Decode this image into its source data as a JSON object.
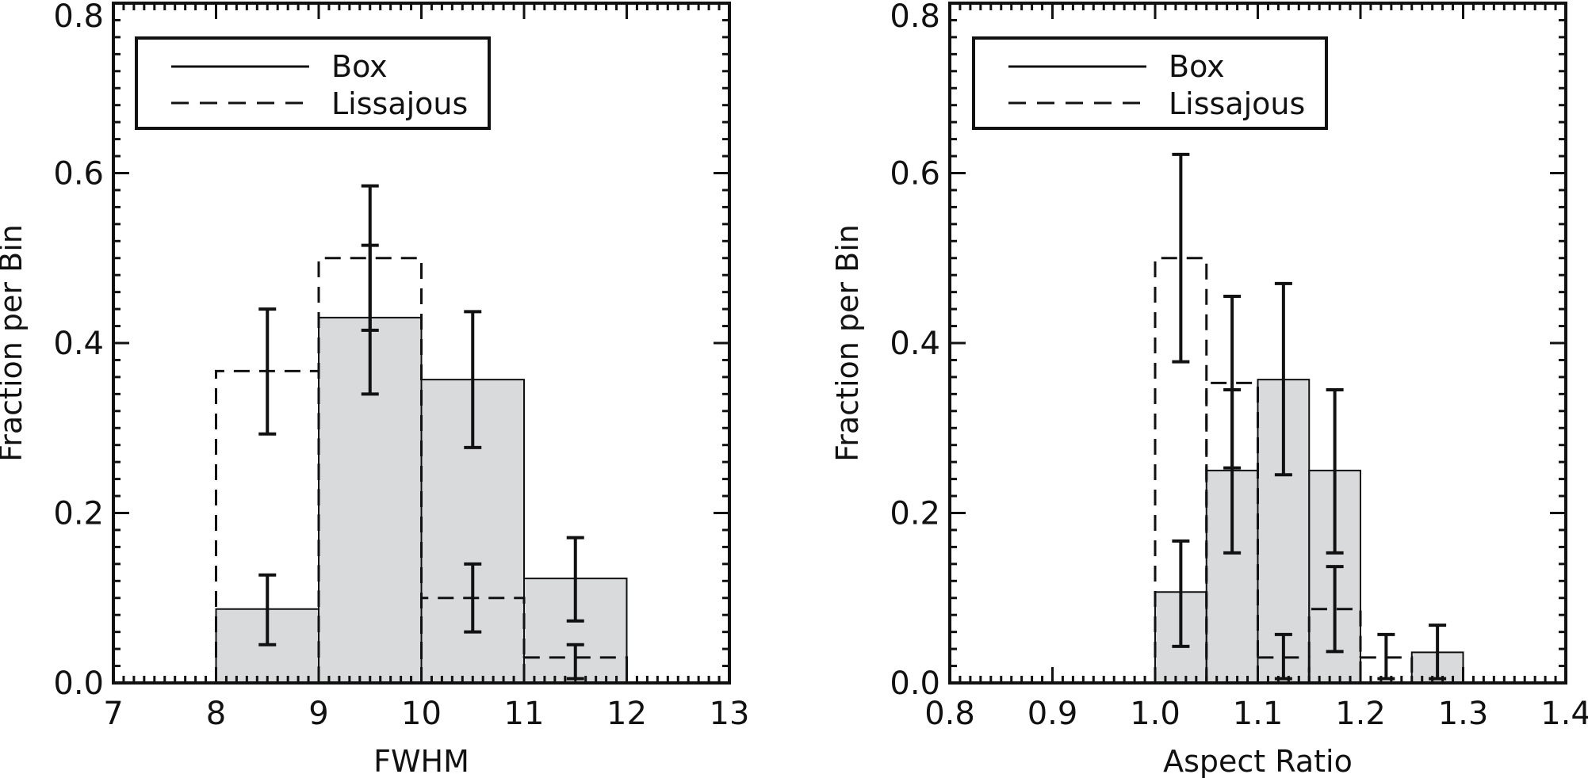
{
  "chart_data": [
    {
      "type": "bar",
      "xlabel": "FWHM",
      "ylabel": "Fraction per Bin",
      "xlim": [
        7,
        13
      ],
      "ylim": [
        0,
        0.8
      ],
      "xticks": [
        "7",
        "8",
        "9",
        "10",
        "11",
        "12",
        "13"
      ],
      "yticks": [
        "0.0",
        "0.2",
        "0.4",
        "0.6",
        "0.8"
      ],
      "bin_edges": [
        8,
        9,
        10,
        11,
        12
      ],
      "legend": {
        "position": "top-left",
        "entries": [
          "Box",
          "Lissajous"
        ]
      },
      "series": [
        {
          "name": "Box",
          "style": "solid-filled",
          "values": [
            0.087,
            0.43,
            0.357,
            0.123
          ],
          "errors": [
            [
              0.045,
              0.127
            ],
            [
              0.34,
              0.585
            ],
            [
              0.277,
              0.437
            ],
            [
              0.073,
              0.171
            ]
          ]
        },
        {
          "name": "Lissajous",
          "style": "dashed",
          "values": [
            0.367,
            0.5,
            0.1,
            0.03
          ],
          "errors": [
            [
              0.293,
              0.44
            ],
            [
              0.415,
              0.515
            ],
            [
              0.06,
              0.14
            ],
            [
              0.005,
              0.045
            ]
          ]
        }
      ]
    },
    {
      "type": "bar",
      "xlabel": "Aspect Ratio",
      "ylabel": "Fraction per Bin",
      "xlim": [
        0.8,
        1.4
      ],
      "ylim": [
        0,
        0.8
      ],
      "xticks": [
        "0.8",
        "0.9",
        "1.0",
        "1.1",
        "1.2",
        "1.3",
        "1.4"
      ],
      "yticks": [
        "0.0",
        "0.2",
        "0.4",
        "0.6",
        "0.8"
      ],
      "bin_edges": [
        1.0,
        1.05,
        1.1,
        1.15,
        1.2,
        1.25,
        1.3
      ],
      "legend": {
        "position": "top-left",
        "entries": [
          "Box",
          "Lissajous"
        ]
      },
      "series": [
        {
          "name": "Box",
          "style": "solid-filled",
          "values": [
            0.107,
            0.25,
            0.357,
            0.25,
            0.0,
            0.036
          ],
          "errors": [
            [
              0.043,
              0.167
            ],
            [
              0.153,
              0.345
            ],
            [
              0.245,
              0.47
            ],
            [
              0.153,
              0.345
            ],
            null,
            [
              0.005,
              0.068
            ]
          ]
        },
        {
          "name": "Lissajous",
          "style": "dashed",
          "values": [
            0.5,
            0.353,
            0.03,
            0.087,
            0.03,
            0.0
          ],
          "errors": [
            [
              0.378,
              0.622
            ],
            [
              0.253,
              0.455
            ],
            [
              0.005,
              0.057
            ],
            [
              0.037,
              0.137
            ],
            [
              0.005,
              0.057
            ],
            null
          ]
        }
      ]
    }
  ],
  "colors": {
    "fill": "#d9dadc",
    "ink": "#111111",
    "background": "#ffffff"
  }
}
